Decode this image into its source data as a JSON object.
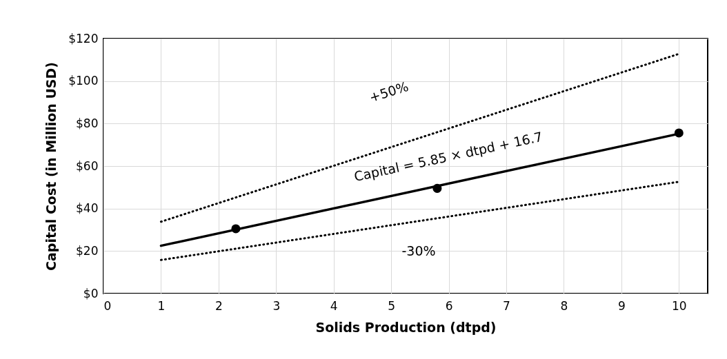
{
  "chart_data": {
    "type": "scatter",
    "xlabel": "Solids Production (dtpd)",
    "ylabel": "Capital Cost (in Million USD)",
    "xlim": [
      0,
      10.5
    ],
    "xticks": [
      0,
      1,
      2,
      3,
      4,
      5,
      6,
      7,
      8,
      9,
      10
    ],
    "ylim": [
      0,
      120
    ],
    "yticks": [
      {
        "value": 0,
        "label": "$0"
      },
      {
        "value": 20,
        "label": "$20"
      },
      {
        "value": 40,
        "label": "$40"
      },
      {
        "value": 60,
        "label": "$60"
      },
      {
        "value": 80,
        "label": "$80"
      },
      {
        "value": 100,
        "label": "$100"
      },
      {
        "value": 120,
        "label": "$120"
      }
    ],
    "grid": true,
    "marker": "circle",
    "series": [
      {
        "color": "#000000",
        "x": [
          2.3,
          5.8,
          10
        ],
        "values": [
          30.5,
          49.5,
          75.6
        ]
      },
      {
        "type": "line",
        "marker": "none",
        "color": "#000000",
        "line_style": "solid",
        "x": [
          1,
          10
        ],
        "values": [
          22.5,
          75.2
        ]
      },
      {
        "type": "line",
        "marker": "none",
        "color": "#000000",
        "line_style": "dotted",
        "x": [
          1,
          10
        ],
        "values": [
          33.8,
          112.8
        ]
      },
      {
        "type": "line",
        "marker": "none",
        "color": "#000000",
        "line_style": "dotted",
        "x": [
          1,
          10
        ],
        "values": [
          15.8,
          52.6
        ]
      }
    ],
    "annotations": [
      "+50%",
      "Capital = 5.85 × dtpd + 16.7",
      "-30%"
    ]
  }
}
